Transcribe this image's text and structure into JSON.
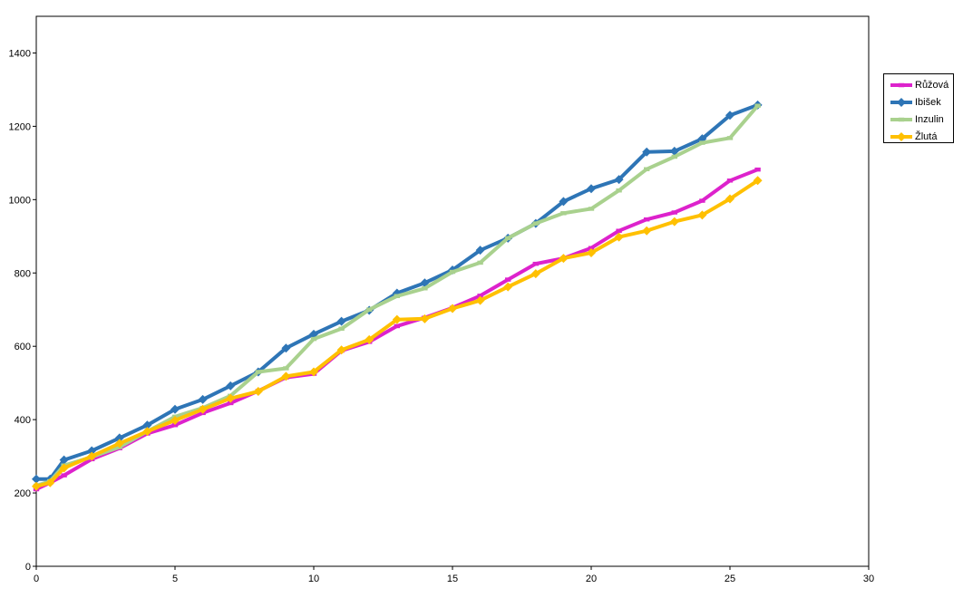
{
  "chart_data": {
    "type": "line",
    "xlim": [
      0,
      30
    ],
    "ylim": [
      0,
      1500
    ],
    "x_ticks": [
      "0",
      "5",
      "10",
      "15",
      "20",
      "25",
      "30"
    ],
    "y_ticks": [
      "0",
      "200",
      "400",
      "600",
      "800",
      "1000",
      "1200",
      "1400"
    ],
    "grid": false,
    "legend_position": "right",
    "series": [
      {
        "name": "Růžová",
        "color": "#dd22cc",
        "marker": "square",
        "points": [
          [
            0,
            210
          ],
          [
            0.5,
            228
          ],
          [
            1,
            248
          ],
          [
            2,
            292
          ],
          [
            3,
            322
          ],
          [
            4,
            362
          ],
          [
            5,
            385
          ],
          [
            6,
            418
          ],
          [
            7,
            445
          ],
          [
            8,
            478
          ],
          [
            9,
            515
          ],
          [
            10,
            525
          ],
          [
            11,
            588
          ],
          [
            12,
            612
          ],
          [
            13,
            655
          ],
          [
            14,
            678
          ],
          [
            15,
            705
          ],
          [
            16,
            738
          ],
          [
            17,
            782
          ],
          [
            18,
            825
          ],
          [
            19,
            840
          ],
          [
            20,
            868
          ],
          [
            21,
            915
          ],
          [
            22,
            946
          ],
          [
            23,
            965
          ],
          [
            24,
            997
          ],
          [
            25,
            1052
          ],
          [
            26,
            1082
          ]
        ]
      },
      {
        "name": "Ibišek",
        "color": "#2e75b6",
        "marker": "diamond",
        "points": [
          [
            0,
            238
          ],
          [
            0.5,
            238
          ],
          [
            1,
            290
          ],
          [
            2,
            315
          ],
          [
            3,
            350
          ],
          [
            4,
            385
          ],
          [
            5,
            428
          ],
          [
            6,
            455
          ],
          [
            7,
            492
          ],
          [
            8,
            530
          ],
          [
            9,
            595
          ],
          [
            10,
            633
          ],
          [
            11,
            668
          ],
          [
            12,
            698
          ],
          [
            13,
            745
          ],
          [
            14,
            773
          ],
          [
            15,
            808
          ],
          [
            16,
            862
          ],
          [
            17,
            895
          ],
          [
            18,
            935
          ],
          [
            19,
            995
          ],
          [
            20,
            1030
          ],
          [
            21,
            1055
          ],
          [
            22,
            1130
          ],
          [
            23,
            1132
          ],
          [
            24,
            1166
          ],
          [
            25,
            1230
          ],
          [
            26,
            1258
          ]
        ]
      },
      {
        "name": "Inzulin",
        "color": "#a9d18e",
        "marker": "square",
        "points": [
          [
            0,
            220
          ],
          [
            0.5,
            232
          ],
          [
            1,
            275
          ],
          [
            2,
            298
          ],
          [
            3,
            325
          ],
          [
            4,
            368
          ],
          [
            5,
            408
          ],
          [
            6,
            432
          ],
          [
            7,
            465
          ],
          [
            8,
            530
          ],
          [
            9,
            540
          ],
          [
            10,
            620
          ],
          [
            11,
            648
          ],
          [
            12,
            700
          ],
          [
            13,
            737
          ],
          [
            14,
            758
          ],
          [
            15,
            803
          ],
          [
            16,
            828
          ],
          [
            17,
            895
          ],
          [
            18,
            935
          ],
          [
            19,
            963
          ],
          [
            20,
            975
          ],
          [
            21,
            1025
          ],
          [
            22,
            1083
          ],
          [
            23,
            1117
          ],
          [
            24,
            1155
          ],
          [
            25,
            1168
          ],
          [
            26,
            1256
          ]
        ]
      },
      {
        "name": "Žlutá",
        "color": "#ffc000",
        "marker": "diamond",
        "points": [
          [
            0,
            218
          ],
          [
            0.5,
            228
          ],
          [
            1,
            268
          ],
          [
            2,
            300
          ],
          [
            3,
            335
          ],
          [
            4,
            368
          ],
          [
            5,
            398
          ],
          [
            6,
            428
          ],
          [
            7,
            458
          ],
          [
            8,
            477
          ],
          [
            9,
            518
          ],
          [
            10,
            530
          ],
          [
            11,
            590
          ],
          [
            12,
            618
          ],
          [
            13,
            673
          ],
          [
            14,
            675
          ],
          [
            15,
            703
          ],
          [
            16,
            725
          ],
          [
            17,
            762
          ],
          [
            18,
            798
          ],
          [
            19,
            840
          ],
          [
            20,
            855
          ],
          [
            21,
            898
          ],
          [
            22,
            915
          ],
          [
            23,
            940
          ],
          [
            24,
            958
          ],
          [
            25,
            1002
          ],
          [
            26,
            1052
          ]
        ]
      }
    ]
  }
}
